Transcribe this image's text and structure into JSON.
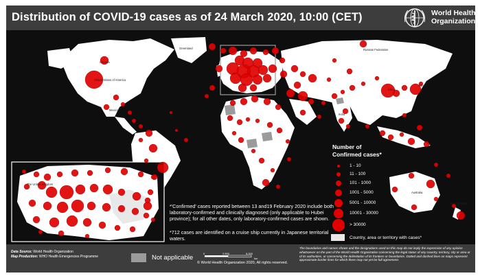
{
  "header": {
    "title": "Distribution of COVID-19  cases as of 24 March 2020, 10:00 (CET)",
    "org_line1": "World Health",
    "org_line2": "Organization",
    "logo_icon": "who-emblem-icon"
  },
  "legend": {
    "title_line1": "Number of",
    "title_line2": "Confirmed cases*",
    "items": [
      {
        "label": "1 - 10"
      },
      {
        "label": "11 - 100"
      },
      {
        "label": "101 - 1000"
      },
      {
        "label": "1001 - 5000"
      },
      {
        "label": "5001 - 10000"
      },
      {
        "label": "10001 - 30000"
      },
      {
        "label": "> 30000"
      }
    ],
    "other": "Country, area or territory with cases*"
  },
  "notes": {
    "note1": "*'Confirmed' cases reported between 13 and19 February 2020 include both laboratory-confirmed and clinically diagnosed (only applicable to Hubei province); for all other dates, only laboratory-confirmed cases are shown.",
    "note2": "*712 cases are identified on a cruise ship currently in Japanese territorial waters."
  },
  "footer": {
    "data_source_label": "Data Source:",
    "data_source": "World Health Organization",
    "map_production_label": "Map Production:",
    "map_production": "WHO Health Emergencies Programme",
    "not_applicable": "Not applicable",
    "scale_0": "0",
    "scale_1": "2,500",
    "scale_2": "5,000",
    "scale_unit": "km",
    "copyright": "© World Health Organization  2020,  All rights reserved.",
    "disclaimer": "The boundaries and names shown and the designations used on this map do not imply the expression of any opinion whatsoever on the part of the World Health Organization concerning the legal status of any country, territory, city or area or of its authorities, or concerning the delimitation of its frontiers or boundaries. Dotted and dashed lines on maps represent approximate border lines for which there may not yet be full agreement."
  },
  "map_labels": {
    "canada": "Canada",
    "usa": "United States of America",
    "mexico": "Mexico",
    "brazil": "Brazil",
    "russia": "Russian Federation",
    "china": "China",
    "india": "India",
    "australia": "Australia",
    "new_zealand": "New Zealand",
    "japan": "Japan",
    "greenland": "Greenland",
    "uk": "The United Kingdom"
  },
  "colors": {
    "case_red": "#e00000",
    "land": "#ffffff",
    "ocean": "#0e0e0e",
    "not_applicable": "#9b9b9b",
    "bar": "#3d3d3d"
  }
}
